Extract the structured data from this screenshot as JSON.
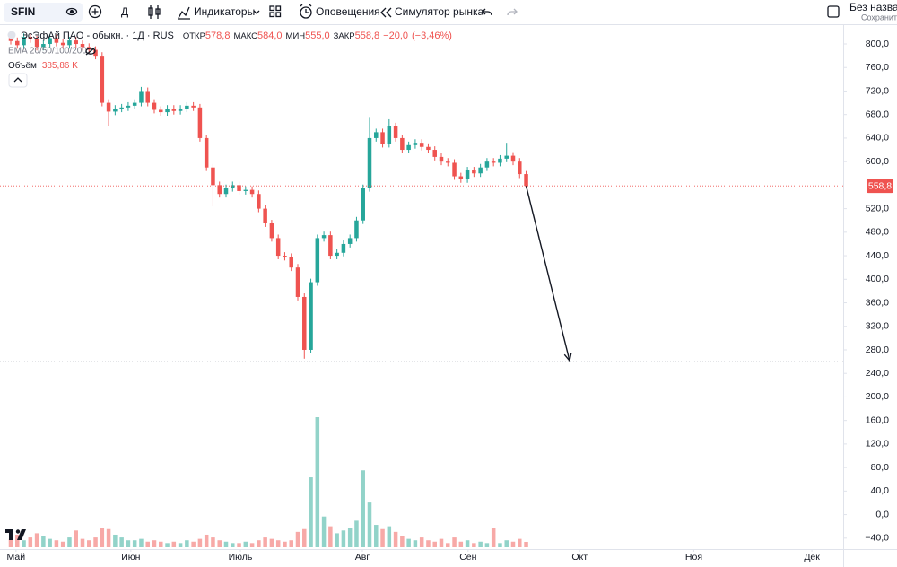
{
  "toolbar": {
    "symbol": "SFIN",
    "interval": "Д",
    "indicators": "Индикаторы",
    "alerts": "Оповещения",
    "replay": "Симулятор рынка",
    "layout_name": "Без названи",
    "save": "Сохранить"
  },
  "chart_data": {
    "type": "candlestick",
    "title": "ЭсЭфАй ПАО - обыкн. · 1Д · RUS",
    "ohlc_labels": [
      "ОТКР",
      "МАКС",
      "МИН",
      "ЗАКР"
    ],
    "ohlc_values": [
      {
        "value": 578.8,
        "label": "578,8"
      },
      {
        "value": 584.0,
        "label": "584,0"
      },
      {
        "value": 555.0,
        "label": "555,0"
      },
      {
        "value": 558.8,
        "label": "558,8"
      }
    ],
    "change": {
      "value": -20.0,
      "label": "−20,0"
    },
    "change_pct": {
      "value": -3.46,
      "label": "(−3,46%)"
    },
    "indicator": "EMA 20/50/100/200",
    "volume_title": "Объём",
    "volume_last": {
      "value": 385.86,
      "label": "385,86 K"
    },
    "open": [
      810,
      805,
      798,
      812,
      808,
      795,
      800,
      810,
      802,
      798,
      806,
      800,
      795,
      790,
      780,
      700,
      685,
      690,
      692,
      695,
      700,
      720,
      700,
      688,
      684,
      690,
      686,
      690,
      695,
      692,
      640,
      590,
      560,
      545,
      555,
      560,
      550,
      552,
      545,
      520,
      495,
      470,
      440,
      438,
      420,
      370,
      280,
      395,
      470,
      475,
      440,
      445,
      460,
      470,
      500,
      555,
      640,
      650,
      630,
      660,
      640,
      620,
      628,
      632,
      625,
      620,
      608,
      600,
      598,
      575,
      570,
      585,
      580,
      590,
      600,
      598,
      605,
      610,
      600,
      578.8
    ],
    "high": [
      816,
      811,
      818,
      818,
      814,
      806,
      816,
      816,
      808,
      812,
      812,
      806,
      801,
      796,
      786,
      706,
      696,
      698,
      701,
      706,
      727,
      726,
      706,
      694,
      696,
      696,
      696,
      701,
      701,
      698,
      646,
      596,
      566,
      561,
      566,
      566,
      558,
      558,
      551,
      526,
      501,
      476,
      446,
      444,
      426,
      376,
      401,
      476,
      481,
      481,
      451,
      466,
      476,
      506,
      561,
      676,
      656,
      656,
      672,
      666,
      646,
      634,
      638,
      638,
      631,
      626,
      614,
      606,
      604,
      581,
      591,
      591,
      596,
      606,
      606,
      611,
      632,
      616,
      606,
      584
    ],
    "low": [
      799,
      792,
      792,
      802,
      789,
      789,
      794,
      796,
      792,
      792,
      794,
      789,
      784,
      774,
      694,
      661,
      679,
      684,
      686,
      689,
      694,
      694,
      682,
      678,
      678,
      680,
      680,
      684,
      686,
      634,
      584,
      524,
      539,
      539,
      549,
      544,
      544,
      539,
      514,
      489,
      464,
      434,
      432,
      414,
      364,
      265,
      274,
      389,
      464,
      434,
      434,
      439,
      454,
      464,
      494,
      549,
      634,
      624,
      624,
      634,
      614,
      614,
      622,
      619,
      614,
      602,
      594,
      592,
      569,
      564,
      564,
      574,
      574,
      584,
      592,
      592,
      599,
      594,
      572,
      555
    ],
    "close": [
      805,
      798,
      812,
      808,
      795,
      800,
      810,
      802,
      798,
      806,
      800,
      795,
      790,
      780,
      700,
      685,
      690,
      692,
      695,
      700,
      720,
      700,
      688,
      684,
      690,
      686,
      690,
      695,
      692,
      640,
      590,
      560,
      545,
      555,
      560,
      550,
      552,
      545,
      520,
      495,
      470,
      440,
      438,
      420,
      370,
      280,
      395,
      470,
      475,
      440,
      445,
      460,
      470,
      500,
      555,
      640,
      650,
      630,
      660,
      640,
      620,
      628,
      632,
      625,
      620,
      608,
      600,
      598,
      575,
      570,
      585,
      580,
      590,
      600,
      598,
      605,
      610,
      600,
      578.8,
      558.8
    ],
    "volume": [
      600,
      900,
      500,
      700,
      1000,
      800,
      600,
      500,
      400,
      700,
      1200,
      600,
      500,
      700,
      1400,
      1300,
      900,
      700,
      500,
      500,
      600,
      400,
      500,
      400,
      300,
      400,
      300,
      500,
      400,
      600,
      900,
      700,
      500,
      400,
      300,
      300,
      400,
      300,
      500,
      700,
      600,
      500,
      400,
      500,
      1100,
      1300,
      5000,
      9300,
      2200,
      1500,
      1000,
      1200,
      1400,
      1900,
      5500,
      3200,
      1600,
      1300,
      1500,
      1100,
      800,
      600,
      500,
      700,
      500,
      400,
      600,
      300,
      700,
      400,
      500,
      300,
      400,
      300,
      1400,
      300,
      500,
      400,
      600,
      385.86
    ],
    "up_color": "#26a69a",
    "down_color": "#ef5350",
    "volume_up_color": "#92d3c9",
    "volume_down_color": "#f7a9a7",
    "xlim": [
      -1.65,
      127.6
    ],
    "xticks": [
      {
        "value": 0.8,
        "label": "Май"
      },
      {
        "value": 18.4,
        "label": "Июн"
      },
      {
        "value": 35.2,
        "label": "Июль"
      },
      {
        "value": 53.9,
        "label": "Авг"
      },
      {
        "value": 70.1,
        "label": "Сен"
      },
      {
        "value": 87.2,
        "label": "Окт"
      },
      {
        "value": 104.7,
        "label": "Ноя"
      },
      {
        "value": 122.8,
        "label": "Дек"
      }
    ],
    "ylim": [
      -58.6,
      829
    ],
    "yticks": [
      {
        "value": 800,
        "label": "800,0"
      },
      {
        "value": 760,
        "label": "760,0"
      },
      {
        "value": 720,
        "label": "720,0"
      },
      {
        "value": 680,
        "label": "680,0"
      },
      {
        "value": 640,
        "label": "640,0"
      },
      {
        "value": 600,
        "label": "600,0"
      },
      {
        "value": 520,
        "label": "520,0"
      },
      {
        "value": 480,
        "label": "480,0"
      },
      {
        "value": 440,
        "label": "440,0"
      },
      {
        "value": 400,
        "label": "400,0"
      },
      {
        "value": 360,
        "label": "360,0"
      },
      {
        "value": 320,
        "label": "320,0"
      },
      {
        "value": 280,
        "label": "280,0"
      },
      {
        "value": 240,
        "label": "240,0"
      },
      {
        "value": 200,
        "label": "200,0"
      },
      {
        "value": 160,
        "label": "160,0"
      },
      {
        "value": 120,
        "label": "120,0"
      },
      {
        "value": 80,
        "label": "80,0"
      },
      {
        "value": 40,
        "label": "40,0"
      },
      {
        "value": 0,
        "label": "0,0"
      },
      {
        "value": -40,
        "label": "−40,0"
      }
    ],
    "last_price_label": {
      "value": 558.8,
      "label": "558,8"
    },
    "drawn_level": 260,
    "grid": false
  }
}
